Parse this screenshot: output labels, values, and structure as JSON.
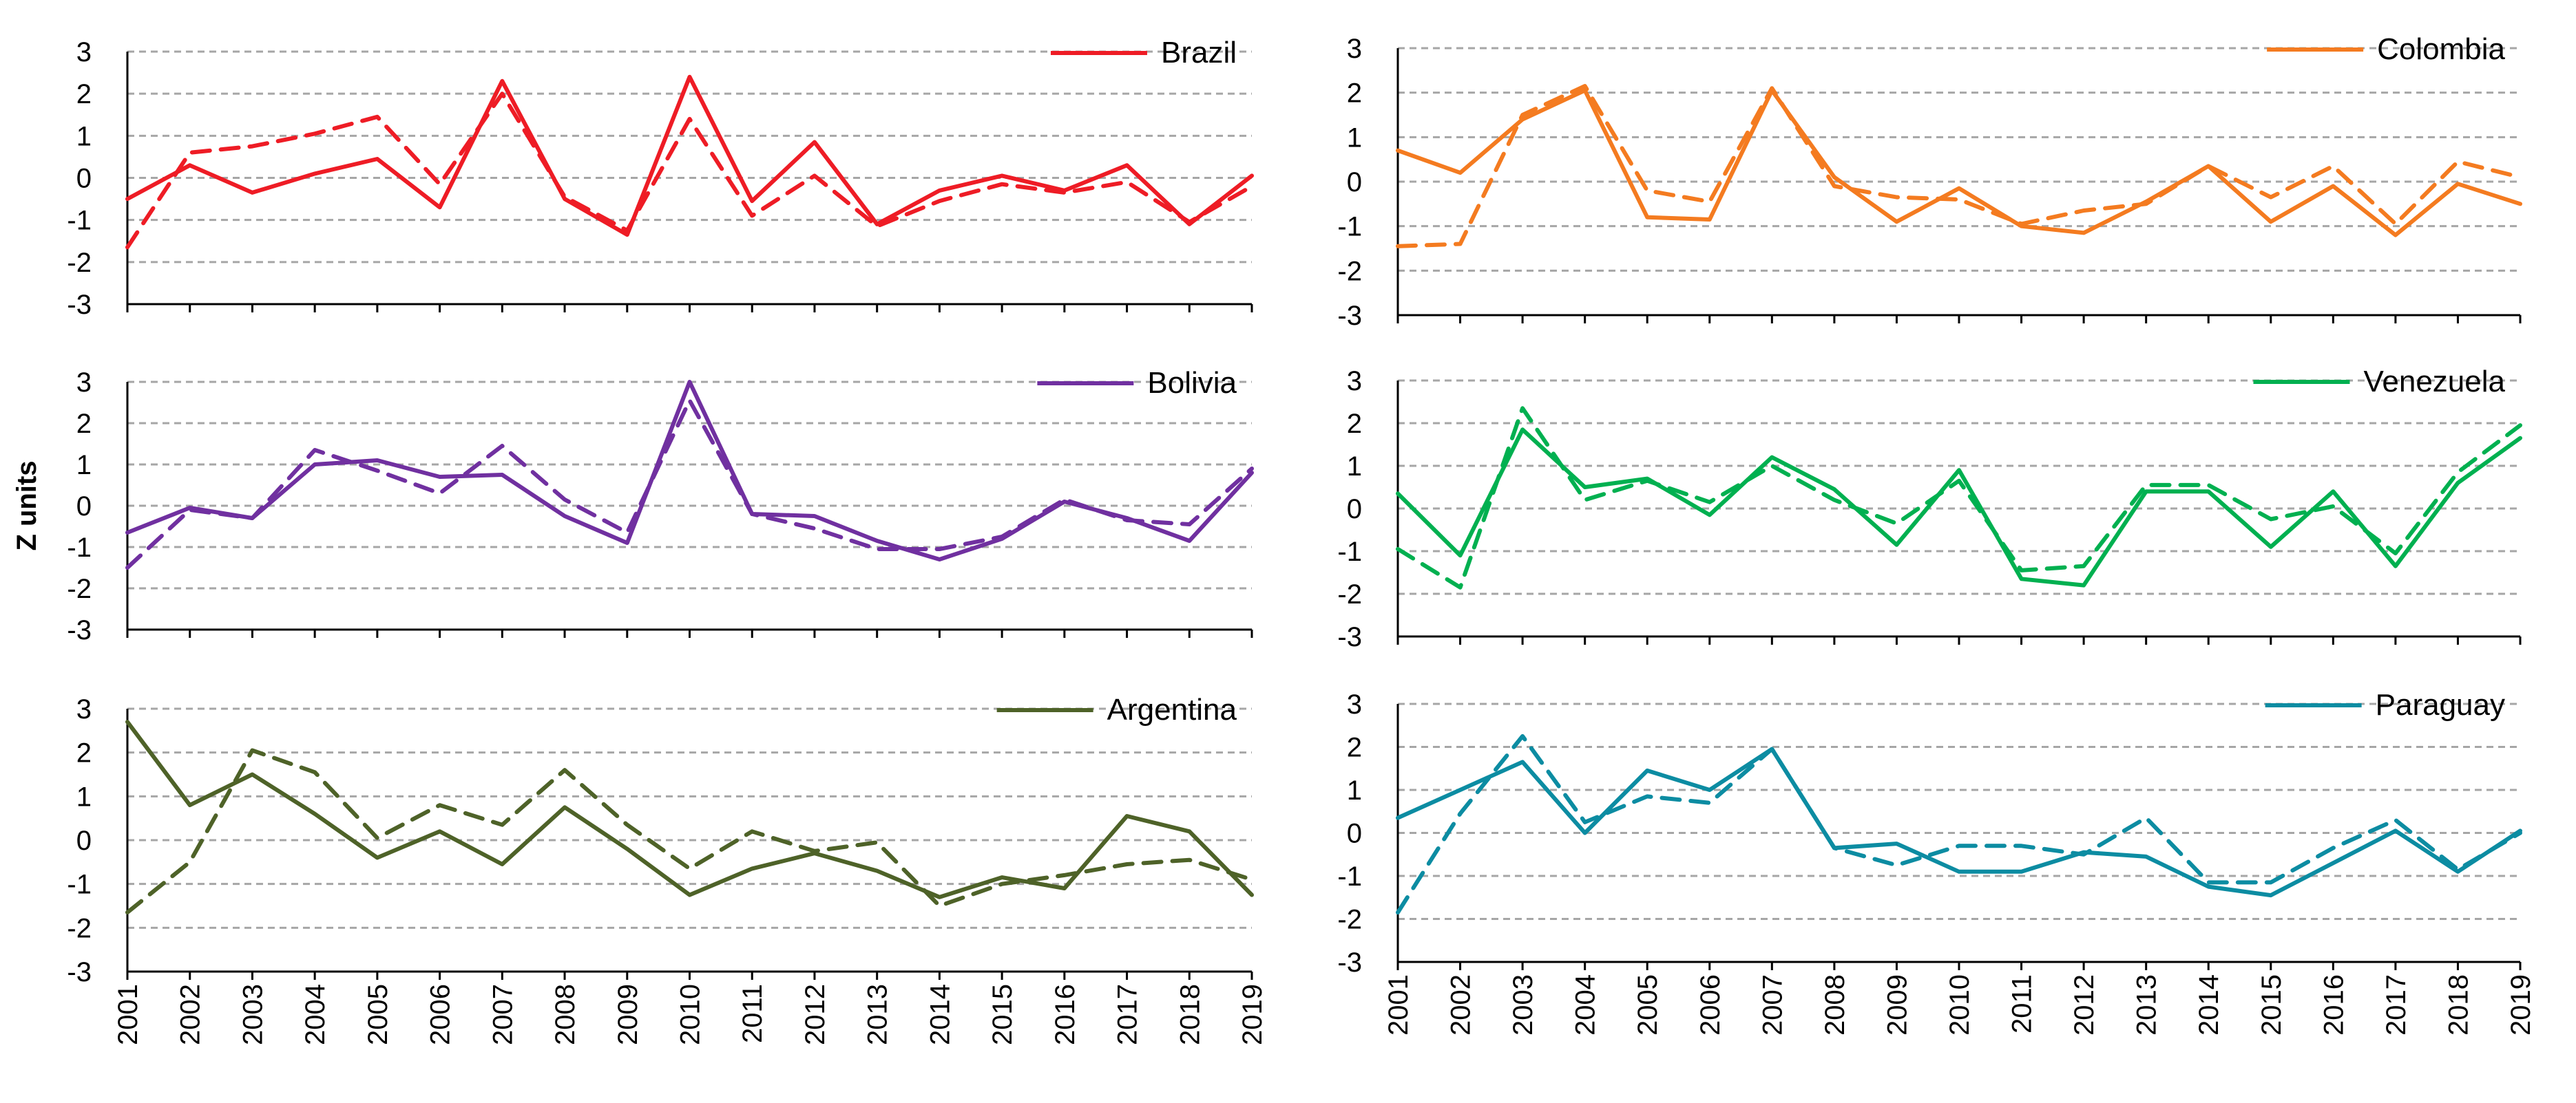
{
  "shared_ylabel": "Z units",
  "chart_data": [
    {
      "type": "line",
      "legend": "Brazil",
      "color": "#ee1c25",
      "x": [
        2001,
        2002,
        2003,
        2004,
        2005,
        2006,
        2007,
        2008,
        2009,
        2010,
        2011,
        2012,
        2013,
        2014,
        2015,
        2016,
        2017,
        2018,
        2019
      ],
      "yticks": [
        "-3",
        "-2",
        "-1",
        "0",
        "1",
        "2",
        "3"
      ],
      "ylim": [
        -3,
        3
      ],
      "grid": true,
      "legend_position": "top-right",
      "series": [
        {
          "style": "solid",
          "values": [
            -0.5,
            0.3,
            -0.35,
            0.1,
            0.45,
            -0.7,
            2.3,
            -0.5,
            -1.35,
            2.4,
            -0.55,
            0.85,
            -1.1,
            -0.3,
            0.05,
            -0.3,
            0.3,
            -1.1,
            0.05
          ]
        },
        {
          "style": "dashed",
          "values": [
            -1.65,
            0.6,
            0.75,
            1.05,
            1.45,
            -0.15,
            2.0,
            -0.45,
            -1.25,
            1.4,
            -0.9,
            0.05,
            -1.15,
            -0.55,
            -0.15,
            -0.35,
            -0.1,
            -1.05,
            -0.2
          ]
        }
      ]
    },
    {
      "type": "line",
      "legend": "Colombia",
      "color": "#f47b20",
      "x": [
        2001,
        2002,
        2003,
        2004,
        2005,
        2006,
        2007,
        2008,
        2009,
        2010,
        2011,
        2012,
        2013,
        2014,
        2015,
        2016,
        2017,
        2018,
        2019
      ],
      "yticks": [
        "-3",
        "-2",
        "-1",
        "0",
        "1",
        "2",
        "3"
      ],
      "ylim": [
        -3,
        3
      ],
      "grid": true,
      "legend_position": "top-right",
      "series": [
        {
          "style": "solid",
          "values": [
            0.7,
            0.2,
            1.4,
            2.05,
            -0.8,
            -0.85,
            2.05,
            0.1,
            -0.9,
            -0.15,
            -1.0,
            -1.15,
            -0.45,
            0.35,
            -0.9,
            -0.1,
            -1.2,
            -0.05,
            -0.5
          ]
        },
        {
          "style": "dashed",
          "values": [
            -1.45,
            -1.4,
            1.5,
            2.15,
            -0.2,
            -0.45,
            2.1,
            -0.1,
            -0.35,
            -0.4,
            -0.95,
            -0.65,
            -0.5,
            0.35,
            -0.35,
            0.35,
            -0.95,
            0.45,
            0.1
          ]
        }
      ]
    },
    {
      "type": "line",
      "legend": "Bolivia",
      "color": "#7030a0",
      "x": [
        2001,
        2002,
        2003,
        2004,
        2005,
        2006,
        2007,
        2008,
        2009,
        2010,
        2011,
        2012,
        2013,
        2014,
        2015,
        2016,
        2017,
        2018,
        2019
      ],
      "yticks": [
        "-3",
        "-2",
        "-1",
        "0",
        "1",
        "2",
        "3"
      ],
      "ylim": [
        -3,
        3
      ],
      "grid": true,
      "legend_position": "top-right",
      "series": [
        {
          "style": "solid",
          "values": [
            -0.65,
            -0.05,
            -0.3,
            1.0,
            1.1,
            0.7,
            0.75,
            -0.25,
            -0.9,
            3.0,
            -0.2,
            -0.25,
            -0.85,
            -1.3,
            -0.8,
            0.1,
            -0.3,
            -0.85,
            0.8
          ]
        },
        {
          "style": "dashed",
          "values": [
            -1.5,
            -0.1,
            -0.3,
            1.35,
            0.85,
            0.3,
            1.45,
            0.15,
            -0.65,
            2.55,
            -0.2,
            -0.55,
            -1.05,
            -1.05,
            -0.75,
            0.15,
            -0.35,
            -0.45,
            0.9
          ]
        }
      ]
    },
    {
      "type": "line",
      "legend": "Venezuela",
      "color": "#00b050",
      "x": [
        2001,
        2002,
        2003,
        2004,
        2005,
        2006,
        2007,
        2008,
        2009,
        2010,
        2011,
        2012,
        2013,
        2014,
        2015,
        2016,
        2017,
        2018,
        2019
      ],
      "yticks": [
        "-3",
        "-2",
        "-1",
        "0",
        "1",
        "2",
        "3"
      ],
      "ylim": [
        -3,
        3
      ],
      "grid": true,
      "legend_position": "top-right",
      "series": [
        {
          "style": "solid",
          "values": [
            0.35,
            -1.1,
            1.85,
            0.5,
            0.7,
            -0.15,
            1.2,
            0.45,
            -0.85,
            0.9,
            -1.65,
            -1.8,
            0.4,
            0.4,
            -0.9,
            0.4,
            -1.35,
            0.6,
            1.65
          ]
        },
        {
          "style": "dashed",
          "values": [
            -0.95,
            -1.85,
            2.35,
            0.2,
            0.65,
            0.15,
            1.0,
            0.2,
            -0.35,
            0.65,
            -1.45,
            -1.35,
            0.55,
            0.55,
            -0.25,
            0.05,
            -1.05,
            0.85,
            1.95
          ]
        }
      ]
    },
    {
      "type": "line",
      "legend": "Argentina",
      "color": "#4e6228",
      "x": [
        2001,
        2002,
        2003,
        2004,
        2005,
        2006,
        2007,
        2008,
        2009,
        2010,
        2011,
        2012,
        2013,
        2014,
        2015,
        2016,
        2017,
        2018,
        2019
      ],
      "yticks": [
        "-3",
        "-2",
        "-1",
        "0",
        "1",
        "2",
        "3"
      ],
      "ylim": [
        -3,
        3
      ],
      "grid": true,
      "legend_position": "top-right",
      "series": [
        {
          "style": "solid",
          "values": [
            2.7,
            0.8,
            1.5,
            0.6,
            -0.4,
            0.2,
            -0.55,
            0.75,
            -0.2,
            -1.25,
            -0.65,
            -0.3,
            -0.7,
            -1.3,
            -0.85,
            -1.1,
            0.55,
            0.2,
            -1.25
          ]
        },
        {
          "style": "dashed",
          "values": [
            -1.65,
            -0.5,
            2.05,
            1.55,
            0.05,
            0.8,
            0.35,
            1.6,
            0.35,
            -0.65,
            0.2,
            -0.25,
            -0.05,
            -1.5,
            -1.0,
            -0.8,
            -0.55,
            -0.45,
            -0.9
          ]
        }
      ]
    },
    {
      "type": "line",
      "legend": "Paraguay",
      "color": "#0c8ca2",
      "x": [
        2001,
        2002,
        2003,
        2004,
        2005,
        2006,
        2007,
        2008,
        2009,
        2010,
        2011,
        2012,
        2013,
        2014,
        2015,
        2016,
        2017,
        2018,
        2019
      ],
      "yticks": [
        "-3",
        "-2",
        "-1",
        "0",
        "1",
        "2",
        "3"
      ],
      "ylim": [
        -3,
        3
      ],
      "grid": true,
      "legend_position": "top-right",
      "series": [
        {
          "style": "solid",
          "values": [
            0.35,
            1.0,
            1.65,
            0.0,
            1.45,
            1.0,
            1.95,
            -0.35,
            -0.25,
            -0.9,
            -0.9,
            -0.45,
            -0.55,
            -1.25,
            -1.45,
            -0.7,
            0.05,
            -0.9,
            0.05
          ]
        },
        {
          "style": "dashed",
          "values": [
            -1.85,
            0.45,
            2.25,
            0.25,
            0.85,
            0.7,
            1.95,
            -0.35,
            -0.75,
            -0.3,
            -0.3,
            -0.5,
            0.35,
            -1.15,
            -1.15,
            -0.35,
            0.3,
            -0.85,
            0.0
          ]
        }
      ]
    }
  ]
}
